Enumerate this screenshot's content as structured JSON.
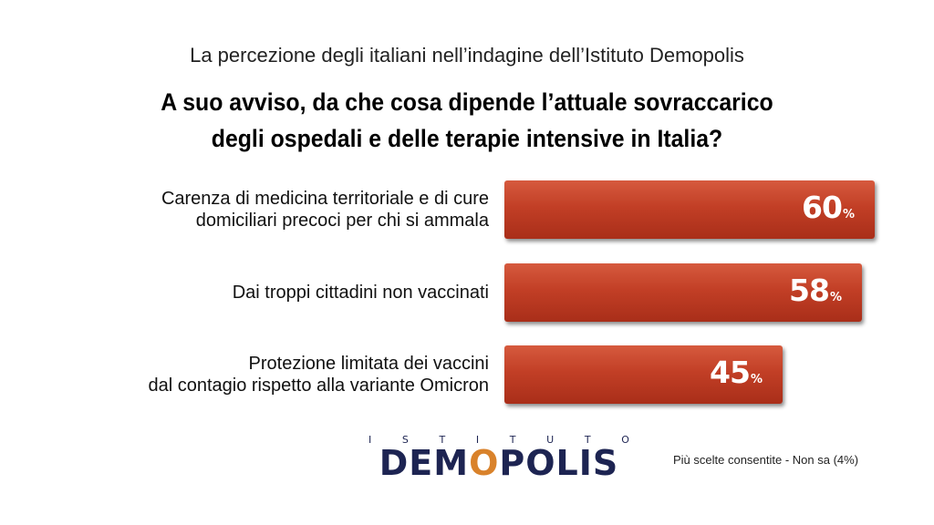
{
  "header": {
    "subtitle": "La percezione degli italiani nell’indagine dell’Istituto Demopolis",
    "title_line1": "A suo avviso, da che cosa dipende l’attuale sovraccarico",
    "title_line2": "degli ospedali e delle terapie intensive in Italia?"
  },
  "chart_data": {
    "type": "bar",
    "orientation": "horizontal",
    "categories": [
      "Carenza di medicina territoriale e di cure\ndomiciliari precoci per chi si ammala",
      "Dai troppi cittadini non vaccinati",
      "Protezione limitata dei vaccini\ndal contagio rispetto alla variante  Omicron"
    ],
    "values": [
      60,
      58,
      45
    ],
    "value_labels": [
      "60",
      "58",
      "45"
    ],
    "unit": "%",
    "bar_color": "#c23f26",
    "grid": false
  },
  "logo": {
    "top_letters": [
      "I",
      "S",
      "T",
      "I",
      "T",
      "U",
      "T",
      "O"
    ],
    "name_part1": "DEM",
    "name_o": "O",
    "name_part2": "POLIS",
    "accent_color": "#d9822b",
    "brand_color": "#1d2452"
  },
  "footer": {
    "note": "Più scelte consentite - Non sa (4%)"
  }
}
